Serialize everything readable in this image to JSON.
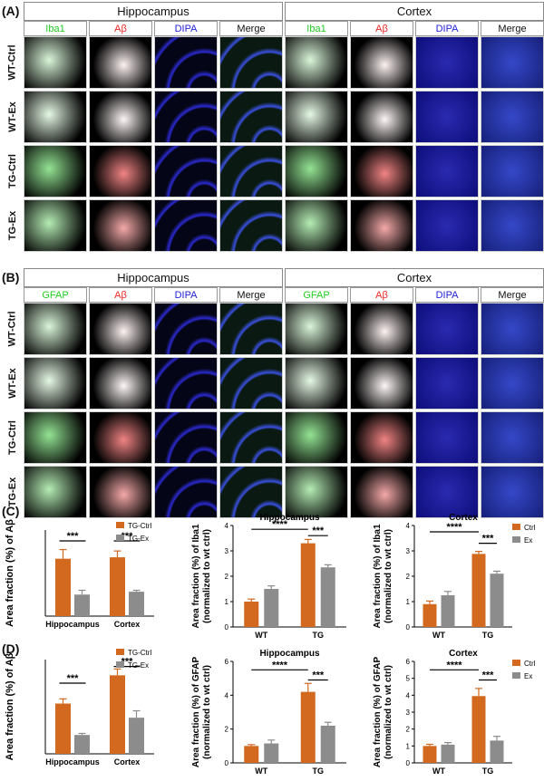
{
  "panels": {
    "A": {
      "letter": "(A)",
      "regions": [
        "Hippocampus",
        "Cortex"
      ],
      "stains": [
        "Iba1",
        "Aβ",
        "DIPA",
        "Merge"
      ],
      "rows": [
        "WT-Ctrl",
        "WT-Ex",
        "TG-Ctrl",
        "TG-Ex"
      ]
    },
    "B": {
      "letter": "(B)",
      "regions": [
        "Hippocampus",
        "Cortex"
      ],
      "stains": [
        "GFAP",
        "Aβ",
        "DIPA",
        "Merge"
      ],
      "rows": [
        "WT-Ctrl",
        "WT-Ex",
        "TG-Ctrl",
        "TG-Ex"
      ]
    },
    "C": {
      "letter": "(C)"
    },
    "D": {
      "letter": "(D)"
    }
  },
  "colors": {
    "ctrl": "#d2691e",
    "ex": "#8c8c8c",
    "green_stain": "#22cc22",
    "red_stain": "#ee2222",
    "blue_stain": "#2222dd"
  },
  "chart_data": [
    {
      "id": "C1",
      "type": "bar",
      "title": "",
      "ylabel": "Area fraction (%) of Aβ",
      "categories": [
        "Hippocampus",
        "Cortex"
      ],
      "series": [
        {
          "name": "TG-Ctrl",
          "values": [
            2.0,
            2.05
          ],
          "errors": [
            0.32,
            0.22
          ]
        },
        {
          "name": "TG-Ex",
          "values": [
            0.75,
            0.85
          ],
          "errors": [
            0.15,
            0.05
          ]
        }
      ],
      "ylim": [
        0,
        3
      ],
      "yticks": [],
      "legend": "top-right",
      "significance": [
        {
          "label": "***",
          "cat": 0,
          "level": 2.62
        },
        {
          "label": "***",
          "cat": 1,
          "level": 2.62
        }
      ]
    },
    {
      "id": "C2",
      "type": "bar",
      "title": "Hippocampus",
      "ylabel": "Area fraction (%) of Iba1 (normalized to wt ctrl)",
      "categories": [
        "WT",
        "TG"
      ],
      "series": [
        {
          "name": "",
          "values": [
            1.0,
            3.3
          ],
          "errors": [
            0.1,
            0.15
          ]
        },
        {
          "name": "",
          "values": [
            1.5,
            2.35
          ],
          "errors": [
            0.12,
            0.1
          ]
        }
      ],
      "ylim": [
        0,
        4
      ],
      "yticks": [
        "0",
        "1",
        "2",
        "3",
        "4"
      ],
      "legend": "none",
      "significance": [
        {
          "label": "****",
          "from": [
            0,
            0
          ],
          "to": [
            1,
            0
          ],
          "level": 3.85
        },
        {
          "label": "***",
          "from": [
            1,
            0
          ],
          "to": [
            1,
            1
          ],
          "level": 3.6
        }
      ]
    },
    {
      "id": "C3",
      "type": "bar",
      "title": "Cortex",
      "ylabel": "Area fraction (%) of Iba1 (normalized to wt ctrl)",
      "categories": [
        "WT",
        "TG"
      ],
      "series": [
        {
          "name": "Ctrl",
          "values": [
            0.9,
            2.88
          ],
          "errors": [
            0.12,
            0.1
          ]
        },
        {
          "name": "Ex",
          "values": [
            1.25,
            2.1
          ],
          "errors": [
            0.15,
            0.1
          ]
        }
      ],
      "ylim": [
        0,
        4
      ],
      "yticks": [
        "0",
        "1",
        "2",
        "3",
        "4"
      ],
      "legend": "top-right",
      "significance": [
        {
          "label": "****",
          "from": [
            0,
            0
          ],
          "to": [
            1,
            0
          ],
          "level": 3.75
        },
        {
          "label": "***",
          "from": [
            1,
            0
          ],
          "to": [
            1,
            1
          ],
          "level": 3.3
        }
      ]
    },
    {
      "id": "D1",
      "type": "bar",
      "title": "",
      "ylabel": "Area fraction (%) of Aβ",
      "categories": [
        "Hippocampus",
        "Cortex"
      ],
      "series": [
        {
          "name": "TG-Ctrl",
          "values": [
            1.6,
            2.5
          ],
          "errors": [
            0.15,
            0.2
          ]
        },
        {
          "name": "TG-Ex",
          "values": [
            0.6,
            1.15
          ],
          "errors": [
            0.05,
            0.22
          ]
        }
      ],
      "ylim": [
        0,
        3
      ],
      "yticks": [],
      "legend": "top-right",
      "significance": [
        {
          "label": "***",
          "cat": 0,
          "level": 2.25
        },
        {
          "label": "***",
          "cat": 1,
          "level": 2.78
        }
      ]
    },
    {
      "id": "D2",
      "type": "bar",
      "title": "Hippocampus",
      "ylabel": "Area fraction (%) of GFAP (normalized to wt ctrl)",
      "categories": [
        "WT",
        "TG"
      ],
      "series": [
        {
          "name": "",
          "values": [
            1.0,
            4.2
          ],
          "errors": [
            0.08,
            0.5
          ]
        },
        {
          "name": "",
          "values": [
            1.15,
            2.2
          ],
          "errors": [
            0.2,
            0.2
          ]
        }
      ],
      "ylim": [
        0,
        6
      ],
      "yticks": [
        "0",
        "2",
        "4",
        "6"
      ],
      "legend": "none",
      "significance": [
        {
          "label": "****",
          "from": [
            0,
            0
          ],
          "to": [
            1,
            0
          ],
          "level": 5.5
        },
        {
          "label": "***",
          "from": [
            1,
            0
          ],
          "to": [
            1,
            1
          ],
          "level": 4.9
        }
      ]
    },
    {
      "id": "D3",
      "type": "bar",
      "title": "Cortex",
      "ylabel": "Area fraction (%) of GFAP (normalized to wt ctrl)",
      "categories": [
        "WT",
        "TG"
      ],
      "series": [
        {
          "name": "Ctrl",
          "values": [
            1.0,
            3.95
          ],
          "errors": [
            0.1,
            0.45
          ]
        },
        {
          "name": "Ex",
          "values": [
            1.08,
            1.32
          ],
          "errors": [
            0.12,
            0.25
          ]
        }
      ],
      "ylim": [
        0,
        6
      ],
      "yticks": [
        "0",
        "1",
        "2",
        "3",
        "4",
        "5",
        "6"
      ],
      "legend": "top-right",
      "significance": [
        {
          "label": "****",
          "from": [
            0,
            0
          ],
          "to": [
            1,
            0
          ],
          "level": 5.5
        },
        {
          "label": "***",
          "from": [
            1,
            0
          ],
          "to": [
            1,
            1
          ],
          "level": 4.9
        }
      ]
    }
  ]
}
